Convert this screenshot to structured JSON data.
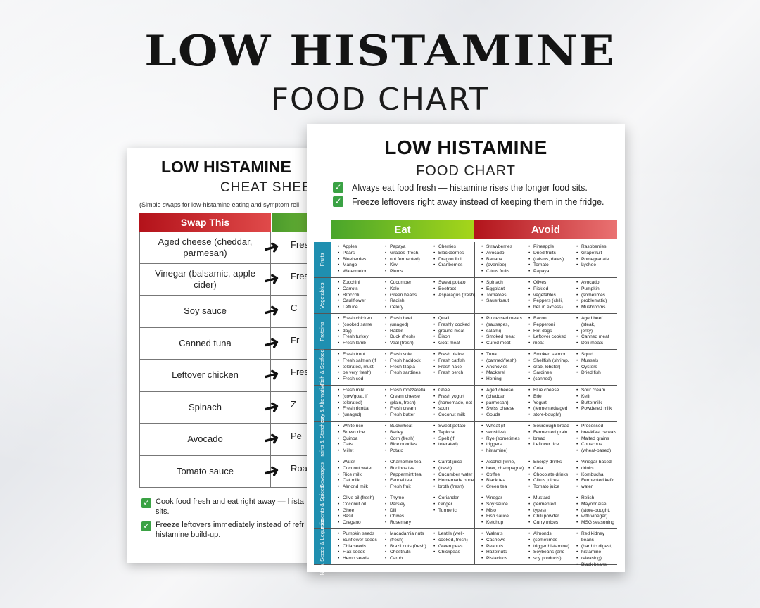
{
  "hero": {
    "title": "LOW HISTAMINE",
    "subtitle": "FOOD CHART"
  },
  "back_sheet": {
    "title": "LOW HISTAMINE",
    "subtitle": "CHEAT SHEE",
    "note": "(Simple swaps for low-histamine eating and symptom reli",
    "swap_header": "Swap This",
    "rows": [
      {
        "swap": "Aged cheese (cheddar, parmesan)",
        "for": "Fresh m"
      },
      {
        "swap": "Vinegar (balsamic, apple cider)",
        "for": "Fresh"
      },
      {
        "swap": "Soy sauce",
        "for": "C"
      },
      {
        "swap": "Canned tuna",
        "for": "Fr"
      },
      {
        "swap": "Leftover chicken",
        "for": "Fresh"
      },
      {
        "swap": "Spinach",
        "for": "Z"
      },
      {
        "swap": "Avocado",
        "for": "Pe"
      },
      {
        "swap": "Tomato sauce",
        "for": "Roa"
      }
    ],
    "tips": [
      {
        "line1": "Cook food fresh and eat right away — hista",
        "line2": "sits."
      },
      {
        "line1": "Freeze leftovers immediately instead of refr",
        "line2": "histamine build-up."
      }
    ]
  },
  "front_sheet": {
    "title": "LOW HISTAMINE",
    "subtitle": "FOOD CHART",
    "tips": [
      "Always eat food fresh — histamine rises the longer food sits.",
      "Freeze leftovers right away instead of keeping them in the fridge."
    ],
    "eat_header": "Eat",
    "avoid_header": "Avoid",
    "categories": [
      {
        "name": "Fruits",
        "columns": [
          [
            "Apples",
            "Pears",
            "Blueberries",
            "Mango",
            "Watermelon"
          ],
          [
            "Papaya",
            "Grapes (fresh,",
            "not fermented)",
            "Kiwi",
            "Plums"
          ],
          [
            "Cherries",
            "Blackberries",
            "Dragon fruit",
            "Cranberries"
          ],
          [
            "Strawberries",
            "Avocado",
            "Banana",
            "(overripe)",
            "Citrus fruits"
          ],
          [
            "Pineapple",
            "Dried fruits",
            "(raisins, dates)",
            "Tomato",
            "Papaya"
          ],
          [
            "Raspberries",
            "Grapefruit",
            "Pomegranate",
            "Lychee"
          ]
        ]
      },
      {
        "name": "Vegetables",
        "columns": [
          [
            "Zucchini",
            "Carrots",
            "Broccoli",
            "Cauliflower",
            "Lettuce"
          ],
          [
            "Cucumber",
            "Kale",
            "Green beans",
            "Radish",
            "Celery"
          ],
          [
            "Sweet potato",
            "Beetroot",
            "Asparagus (fresh)"
          ],
          [
            "Spinach",
            "Eggplant",
            "Tomatoes",
            "Sauerkraut"
          ],
          [
            "Olives",
            "Pickled",
            "vegetables",
            "Peppers (chili,",
            "bell in excess)"
          ],
          [
            "Avocado",
            "Pumpkin",
            "(sometimes",
            "problematic)",
            "Mushrooms"
          ]
        ]
      },
      {
        "name": "Proteins",
        "columns": [
          [
            "Fresh chicken",
            "(cooked same",
            "day)",
            "Fresh turkey",
            "Fresh lamb"
          ],
          [
            "Fresh beef",
            "(unaged)",
            "Rabbit",
            "Duck (fresh)",
            "Veal (fresh)"
          ],
          [
            "Quail",
            "Freshly cooked",
            "ground meat",
            "Bison",
            "Goat meat"
          ],
          [
            "Processed meats",
            "(sausages,",
            "salami)",
            "Smoked meat",
            "Cured meat"
          ],
          [
            "Bacon",
            "Pepperoni",
            "Hot dogs",
            "Leftover cooked",
            "meat"
          ],
          [
            "Aged beef (steak,",
            "jerky)",
            "Canned meat",
            "Deli meats"
          ]
        ]
      },
      {
        "name": "Fish & Seafood",
        "columns": [
          [
            "Fresh trout",
            "Fresh salmon (if",
            "tolerated, must",
            "be very fresh)",
            "Fresh cod"
          ],
          [
            "Fresh sole",
            "Fresh haddock",
            "Fresh tilapia",
            "Fresh sardines"
          ],
          [
            "Fresh plaice",
            "Fresh catfish",
            "Fresh hake",
            "Fresh perch"
          ],
          [
            "Tuna",
            "(canned/fresh)",
            "Anchovies",
            "Mackerel",
            "Herring"
          ],
          [
            "Smoked salmon",
            "Shellfish (shrimp,",
            "crab, lobster)",
            "Sardines",
            "(canned)"
          ],
          [
            "Squid",
            "Mussels",
            "Oysters",
            "Dried fish"
          ]
        ]
      },
      {
        "name": "Dairy & Alternatives",
        "columns": [
          [
            "Fresh milk",
            "(cow/goat, if",
            "tolerated)",
            "Fresh ricotta",
            "(unaged)"
          ],
          [
            "Fresh mozzarella",
            "Cream cheese",
            "(plain, fresh)",
            "Fresh cream",
            "Fresh butter"
          ],
          [
            "Ghee",
            "Fresh yogurt",
            "(homemade, not",
            "sour)",
            "Coconut milk"
          ],
          [
            "Aged cheese",
            "(cheddar,",
            "parmesan)",
            "Swiss cheese",
            "Gouda"
          ],
          [
            "Blue cheese",
            "Brie",
            "Yogurt",
            "(fermented/aged",
            "store-bought)"
          ],
          [
            "Sour cream",
            "Kefir",
            "Buttermilk",
            "Powdered milk"
          ]
        ]
      },
      {
        "name": "Grains & Starches",
        "columns": [
          [
            "White rice",
            "Brown rice",
            "Quinoa",
            "Oats",
            "Millet"
          ],
          [
            "Buckwheat",
            "Barley",
            "Corn (fresh)",
            "Rice noodles",
            "Potato"
          ],
          [
            "Sweet potato",
            "Tapioca",
            "Spelt (if",
            "tolerated)"
          ],
          [
            "Wheat (if",
            "sensitive)",
            "Rye (sometimes",
            "triggers",
            "histamine)"
          ],
          [
            "Sourdough bread",
            "Fermented grain",
            "bread",
            "Leftover rice"
          ],
          [
            "Processed",
            "breakfast cereals",
            "Malted grains",
            "Couscous",
            "(wheat-based)"
          ]
        ]
      },
      {
        "name": "Beverages",
        "columns": [
          [
            "Water",
            "Coconut water",
            "Rice milk",
            "Oat milk",
            "Almond milk"
          ],
          [
            "Chamomile tea",
            "Rooibos tea",
            "Peppermint tea",
            "Fennel tea",
            "Fresh fruit"
          ],
          [
            "Carrot juice",
            "(fresh)",
            "Cucumber water",
            "Homemade bone",
            "broth (fresh)"
          ],
          [
            "Alcohol (wine,",
            "beer, champagne)",
            "Coffee",
            "Black tea",
            "Green tea"
          ],
          [
            "Energy drinks",
            "Cola",
            "Chocolate drinks",
            "Citrus juices",
            "Tomato juice"
          ],
          [
            "Vinegar-based",
            "drinks",
            "Kombucha",
            "Fermented kefir",
            "water"
          ]
        ]
      },
      {
        "name": "Condiments & Spices",
        "columns": [
          [
            "Olive oil (fresh)",
            "Coconut oil",
            "Ghee",
            "Basil",
            "Oregano"
          ],
          [
            "Thyme",
            "Parsley",
            "Dill",
            "Chives",
            "Rosemary"
          ],
          [
            "Coriander",
            "Ginger",
            "Turmeric"
          ],
          [
            "Vinegar",
            "Soy sauce",
            "Miso",
            "Fish sauce",
            "Ketchup"
          ],
          [
            "Mustard",
            "(fermented",
            "types)",
            "Chili powder",
            "Curry mixes"
          ],
          [
            "Relish",
            "Mayonnaise",
            "(store-bought,",
            "with vinegar)",
            "MSG seasoning"
          ]
        ]
      },
      {
        "name": "Nuts, Seeds & Legumes",
        "columns": [
          [
            "Pumpkin seeds",
            "Sunflower seeds",
            "Chia seeds",
            "Flax seeds",
            "Hemp seeds"
          ],
          [
            "Macadamia nuts",
            "(fresh)",
            "Brazil nuts (fresh)",
            "Chestnuts",
            "Carob"
          ],
          [
            "Lentils (well-",
            "cooked, fresh)",
            "Green peas",
            "Chickpeas"
          ],
          [
            "Walnuts",
            "Cashews",
            "Peanuts",
            "Hazelnuts",
            "Pistachios"
          ],
          [
            "Almonds",
            "(sometimes",
            "trigger histamine)",
            "Soybeans (and",
            "soy products)"
          ],
          [
            "Red kidney beans",
            "(hard to digest,",
            "histamine-",
            "releasing)",
            "Black beans"
          ]
        ]
      }
    ]
  }
}
